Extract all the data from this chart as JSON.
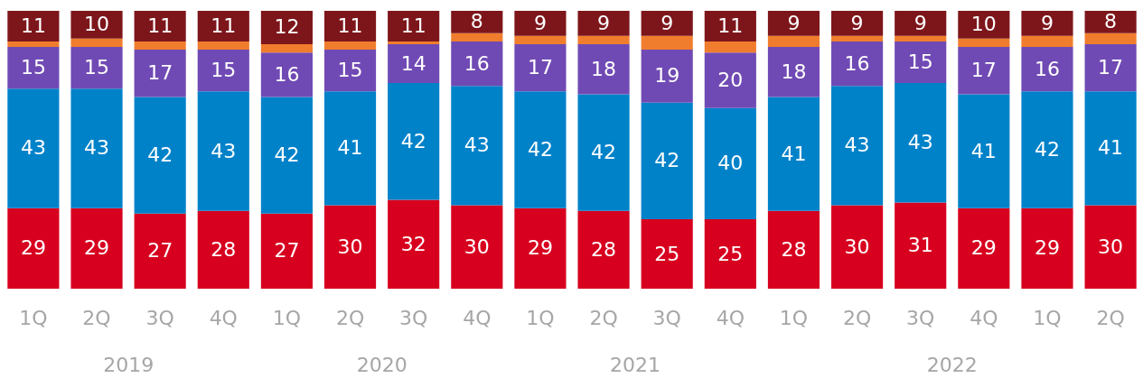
{
  "chart_data": {
    "type": "bar",
    "stacked": true,
    "categories": [
      "1Q",
      "2Q",
      "3Q",
      "4Q",
      "1Q",
      "2Q",
      "3Q",
      "4Q",
      "1Q",
      "2Q",
      "3Q",
      "4Q",
      "1Q",
      "2Q",
      "3Q",
      "4Q",
      "1Q",
      "2Q"
    ],
    "annotations": [
      "2019",
      "2020",
      "2021",
      "2022"
    ],
    "series": [
      {
        "color": "#d7001f",
        "values": [
          29,
          29,
          27,
          28,
          27,
          30,
          32,
          30,
          29,
          28,
          25,
          25,
          28,
          30,
          31,
          29,
          29,
          30
        ],
        "value_labels": [
          "29",
          "29",
          "27",
          "28",
          "27",
          "30",
          "32",
          "30",
          "29",
          "28",
          "25",
          "25",
          "28",
          "30",
          "31",
          "29",
          "29",
          "30"
        ]
      },
      {
        "color": "#0082c9",
        "values": [
          43,
          43,
          42,
          43,
          42,
          41,
          42,
          43,
          42,
          42,
          42,
          40,
          41,
          43,
          43,
          41,
          42,
          41
        ],
        "value_labels": [
          "43",
          "43",
          "42",
          "43",
          "42",
          "41",
          "42",
          "43",
          "42",
          "42",
          "42",
          "40",
          "41",
          "43",
          "43",
          "41",
          "42",
          "41"
        ]
      },
      {
        "color": "#704ab4",
        "values": [
          15,
          15,
          17,
          15,
          16,
          15,
          14,
          16,
          17,
          18,
          19,
          20,
          18,
          16,
          15,
          17,
          16,
          17
        ],
        "value_labels": [
          "15",
          "15",
          "17",
          "15",
          "16",
          "15",
          "14",
          "16",
          "17",
          "18",
          "19",
          "20",
          "18",
          "16",
          "15",
          "17",
          "16",
          "17"
        ]
      },
      {
        "color": "#f07d2d",
        "values": [
          2,
          3,
          3,
          3,
          3,
          3,
          1,
          3,
          3,
          3,
          5,
          4,
          4,
          2,
          2,
          3,
          4,
          4
        ],
        "value_labels": [
          null,
          null,
          null,
          null,
          null,
          null,
          null,
          null,
          null,
          null,
          null,
          null,
          null,
          null,
          null,
          null,
          null,
          null
        ]
      },
      {
        "color": "#7d161b",
        "values": [
          11,
          10,
          11,
          11,
          12,
          11,
          11,
          8,
          9,
          9,
          9,
          11,
          9,
          9,
          9,
          10,
          9,
          8
        ],
        "value_labels": [
          "11",
          "10",
          "11",
          "11",
          "12",
          "11",
          "11",
          "8",
          "9",
          "9",
          "9",
          "11",
          "9",
          "9",
          "9",
          "10",
          "9",
          "8"
        ]
      }
    ]
  }
}
